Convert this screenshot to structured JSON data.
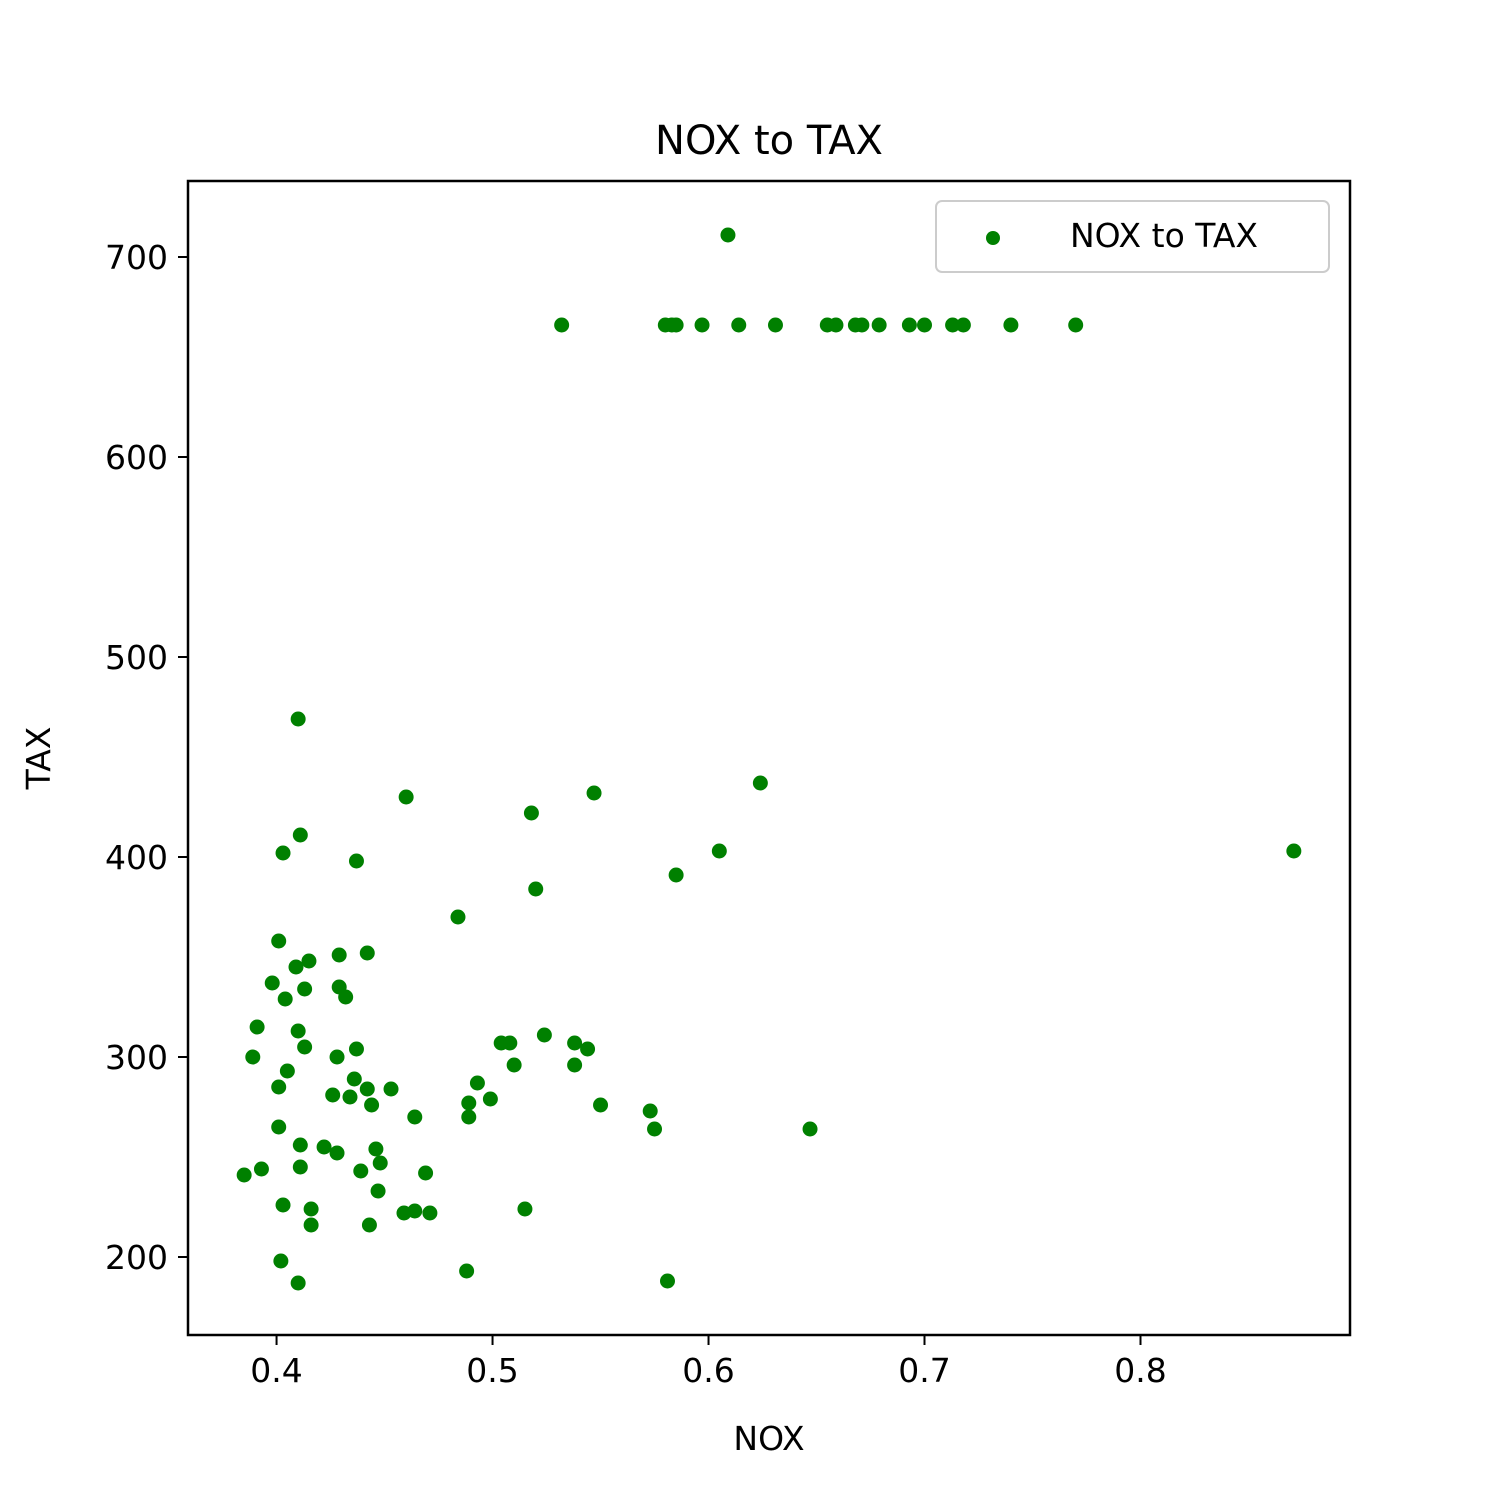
{
  "chart_data": {
    "type": "scatter",
    "title": "NOX to TAX",
    "xlabel": "NOX",
    "ylabel": "TAX",
    "xlim": [
      0.359,
      0.897
    ],
    "ylim": [
      161,
      738
    ],
    "xticks": [
      0.4,
      0.5,
      0.6,
      0.7,
      0.8
    ],
    "xtick_labels": [
      "0.4",
      "0.5",
      "0.6",
      "0.7",
      "0.8"
    ],
    "yticks": [
      200,
      300,
      400,
      500,
      600,
      700
    ],
    "ytick_labels": [
      "200",
      "300",
      "400",
      "500",
      "600",
      "700"
    ],
    "grid": false,
    "legend_position": "top-right",
    "colors": {
      "series": "#008000",
      "axes": "#000000",
      "legend_border": "#cccccc"
    },
    "series": [
      {
        "name": "NOX to TAX",
        "x": [
          0.609,
          0.532,
          0.58,
          0.583,
          0.585,
          0.597,
          0.614,
          0.631,
          0.655,
          0.659,
          0.668,
          0.671,
          0.679,
          0.693,
          0.7,
          0.713,
          0.718,
          0.74,
          0.77,
          0.41,
          0.46,
          0.547,
          0.624,
          0.518,
          0.411,
          0.403,
          0.437,
          0.605,
          0.871,
          0.52,
          0.585,
          0.484,
          0.401,
          0.429,
          0.442,
          0.409,
          0.415,
          0.398,
          0.413,
          0.429,
          0.432,
          0.404,
          0.391,
          0.41,
          0.413,
          0.437,
          0.389,
          0.428,
          0.405,
          0.436,
          0.401,
          0.442,
          0.453,
          0.426,
          0.434,
          0.444,
          0.464,
          0.401,
          0.411,
          0.422,
          0.428,
          0.446,
          0.448,
          0.393,
          0.385,
          0.439,
          0.411,
          0.469,
          0.447,
          0.403,
          0.416,
          0.459,
          0.464,
          0.471,
          0.416,
          0.443,
          0.402,
          0.41,
          0.488,
          0.493,
          0.489,
          0.499,
          0.489,
          0.504,
          0.508,
          0.51,
          0.524,
          0.538,
          0.544,
          0.538,
          0.55,
          0.573,
          0.575,
          0.647,
          0.515,
          0.581
        ],
        "y": [
          711,
          666,
          666,
          666,
          666,
          666,
          666,
          666,
          666,
          666,
          666,
          666,
          666,
          666,
          666,
          666,
          666,
          666,
          666,
          469,
          430,
          432,
          437,
          422,
          411,
          402,
          398,
          403,
          403,
          384,
          391,
          370,
          358,
          351,
          352,
          345,
          348,
          337,
          334,
          335,
          330,
          329,
          315,
          313,
          305,
          304,
          300,
          300,
          293,
          289,
          285,
          284,
          284,
          281,
          280,
          276,
          270,
          265,
          256,
          255,
          252,
          254,
          247,
          244,
          241,
          243,
          245,
          242,
          233,
          226,
          224,
          222,
          223,
          222,
          216,
          216,
          198,
          187,
          193,
          287,
          277,
          279,
          270,
          307,
          307,
          296,
          311,
          307,
          304,
          296,
          276,
          273,
          264,
          264,
          224,
          188
        ]
      }
    ]
  }
}
